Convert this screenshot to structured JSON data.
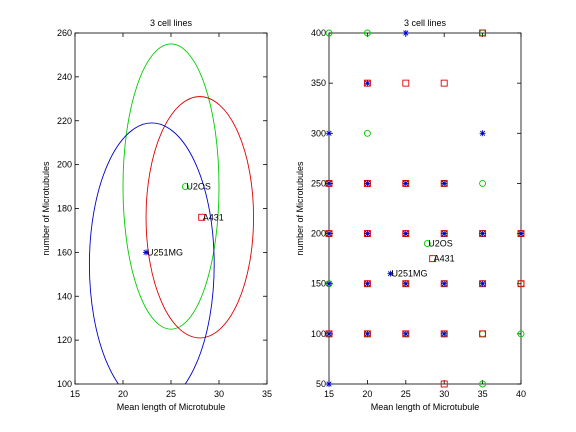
{
  "chart_data": [
    {
      "type": "scatter",
      "title": "3 cell lines",
      "xlabel": "Mean length of Microtubule",
      "ylabel": "number of Microtubules",
      "xlim": [
        15,
        35
      ],
      "ylim": [
        100,
        260
      ],
      "xticks": [
        "15",
        "20",
        "25",
        "30",
        "35"
      ],
      "yticks": [
        "100",
        "120",
        "140",
        "160",
        "180",
        "200",
        "220",
        "240",
        "260"
      ],
      "grid": false,
      "series": [
        {
          "name": "U2OS",
          "color": "#00cc00",
          "marker": "circle",
          "mean": [
            26.5,
            190
          ],
          "ellipse": {
            "center": [
              25,
              190
            ],
            "rx": 5,
            "ry": 65
          }
        },
        {
          "name": "A431",
          "color": "#e00000",
          "marker": "square",
          "mean": [
            28.2,
            176
          ],
          "ellipse": {
            "center": [
              28,
              176
            ],
            "rx": 5.6,
            "ry": 55
          }
        },
        {
          "name": "U251MG",
          "color": "#0000cc",
          "marker": "star",
          "mean": [
            22.4,
            160
          ],
          "ellipse": {
            "center": [
              23,
              154.5
            ],
            "rx": 6.5,
            "ry": 64.5
          }
        }
      ],
      "labels": [
        {
          "text": "U2OS",
          "x": 26.5,
          "y": 190
        },
        {
          "text": "A431",
          "x": 28.2,
          "y": 176
        },
        {
          "text": "U251MG",
          "x": 22.4,
          "y": 160
        }
      ]
    },
    {
      "type": "scatter",
      "title": "3 cell lines",
      "xlabel": "Mean length of Microtubule",
      "ylabel": "number of Microtubules",
      "xlim": [
        15,
        40
      ],
      "ylim": [
        50,
        400
      ],
      "xticks": [
        "15",
        "20",
        "25",
        "30",
        "35",
        "40"
      ],
      "yticks": [
        "50",
        "100",
        "150",
        "200",
        "250",
        "300",
        "350",
        "400"
      ],
      "grid": false,
      "series": [
        {
          "name": "U2OS",
          "color": "#00cc00",
          "marker": "circle",
          "points": [
            [
              15,
              400
            ],
            [
              20,
              400
            ],
            [
              35,
              400
            ],
            [
              20,
              300
            ],
            [
              15,
              250
            ],
            [
              20,
              250
            ],
            [
              25,
              250
            ],
            [
              30,
              250
            ],
            [
              35,
              250
            ],
            [
              15,
              200
            ],
            [
              20,
              200
            ],
            [
              25,
              200
            ],
            [
              30,
              200
            ],
            [
              35,
              200
            ],
            [
              40,
              200
            ],
            [
              15,
              150
            ],
            [
              20,
              150
            ],
            [
              25,
              150
            ],
            [
              30,
              150
            ],
            [
              35,
              150
            ],
            [
              40,
              150
            ],
            [
              15,
              100
            ],
            [
              20,
              100
            ],
            [
              25,
              100
            ],
            [
              30,
              100
            ],
            [
              35,
              100
            ],
            [
              40,
              100
            ],
            [
              35,
              50
            ]
          ]
        },
        {
          "name": "A431",
          "color": "#e00000",
          "marker": "square",
          "points": [
            [
              35,
              400
            ],
            [
              20,
              350
            ],
            [
              25,
              350
            ],
            [
              30,
              350
            ],
            [
              15,
              250
            ],
            [
              20,
              250
            ],
            [
              25,
              250
            ],
            [
              30,
              250
            ],
            [
              15,
              200
            ],
            [
              20,
              200
            ],
            [
              25,
              200
            ],
            [
              30,
              200
            ],
            [
              35,
              200
            ],
            [
              40,
              200
            ],
            [
              20,
              150
            ],
            [
              25,
              150
            ],
            [
              30,
              150
            ],
            [
              35,
              150
            ],
            [
              40,
              150
            ],
            [
              15,
              100
            ],
            [
              20,
              100
            ],
            [
              25,
              100
            ],
            [
              30,
              100
            ],
            [
              35,
              100
            ],
            [
              30,
              50
            ]
          ]
        },
        {
          "name": "U251MG",
          "color": "#0000cc",
          "marker": "star",
          "points": [
            [
              25,
              400
            ],
            [
              20,
              350
            ],
            [
              15,
              300
            ],
            [
              35,
              300
            ],
            [
              15,
              250
            ],
            [
              20,
              250
            ],
            [
              25,
              250
            ],
            [
              30,
              250
            ],
            [
              15,
              200
            ],
            [
              20,
              200
            ],
            [
              25,
              200
            ],
            [
              30,
              200
            ],
            [
              35,
              200
            ],
            [
              40,
              200
            ],
            [
              15,
              150
            ],
            [
              20,
              150
            ],
            [
              25,
              150
            ],
            [
              30,
              150
            ],
            [
              35,
              150
            ],
            [
              15,
              100
            ],
            [
              20,
              100
            ],
            [
              25,
              100
            ],
            [
              30,
              100
            ],
            [
              15,
              50
            ]
          ]
        }
      ],
      "means": [
        {
          "name": "U2OS",
          "x": 27.8,
          "y": 190
        },
        {
          "name": "A431",
          "x": 28.5,
          "y": 175
        },
        {
          "name": "U251MG",
          "x": 23,
          "y": 160
        }
      ],
      "labels": [
        {
          "text": "U2OS",
          "x": 27.8,
          "y": 190
        },
        {
          "text": "A431",
          "x": 28.5,
          "y": 175
        },
        {
          "text": "U251MG",
          "x": 23,
          "y": 160
        }
      ]
    }
  ]
}
